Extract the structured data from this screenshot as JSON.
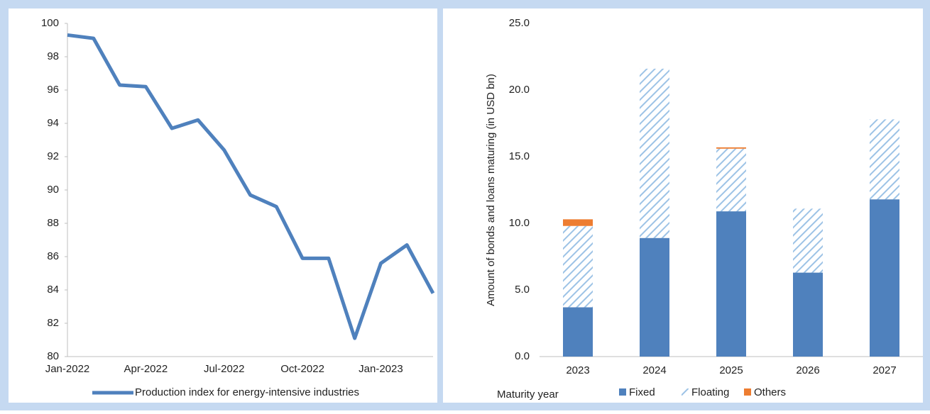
{
  "chart_data": [
    {
      "type": "line",
      "categories": [
        "Jan-2022",
        null,
        null,
        "Apr-2022",
        null,
        null,
        "Jul-2022",
        null,
        null,
        "Oct-2022",
        null,
        null,
        "Jan-2023",
        null,
        null
      ],
      "series": [
        {
          "name": "Production index for energy-intensive industries",
          "color": "#4f81bd",
          "values": [
            99.3,
            99.1,
            96.3,
            96.2,
            93.7,
            94.2,
            92.4,
            89.7,
            89.0,
            85.9,
            85.9,
            81.1,
            85.6,
            86.7,
            83.8
          ]
        }
      ],
      "ylim": [
        80,
        100
      ],
      "yticks": [
        80,
        82,
        84,
        86,
        88,
        90,
        92,
        94,
        96,
        98,
        100
      ],
      "grid": false,
      "legend": "bottom"
    },
    {
      "type": "stacked_bar",
      "y_label": "Amount of bonds and loans maturing (in USD bn)",
      "x_label": "Maturity year",
      "categories": [
        "2023",
        "2024",
        "2025",
        "2026",
        "2027"
      ],
      "series": [
        {
          "name": "Fixed",
          "color": "#4f81bd",
          "pattern": "solid",
          "values": [
            3.7,
            8.9,
            10.9,
            6.3,
            11.8
          ]
        },
        {
          "name": "Floating",
          "color": "#9dc3e6",
          "pattern": "hatch",
          "values": [
            6.1,
            12.7,
            4.7,
            4.8,
            6.0
          ]
        },
        {
          "name": "Others",
          "color": "#ed7d31",
          "pattern": "solid",
          "values": [
            0.5,
            0,
            0.1,
            0,
            0
          ]
        }
      ],
      "ylim": [
        0,
        25
      ],
      "yticks": [
        {
          "value": 0,
          "label": "0.0"
        },
        {
          "value": 5,
          "label": "5.0"
        },
        {
          "value": 10,
          "label": "10.0"
        },
        {
          "value": 15,
          "label": "15.0"
        },
        {
          "value": 20,
          "label": "20.0"
        },
        {
          "value": 25,
          "label": "25.0"
        }
      ],
      "grid": false,
      "legend": "bottom"
    }
  ]
}
